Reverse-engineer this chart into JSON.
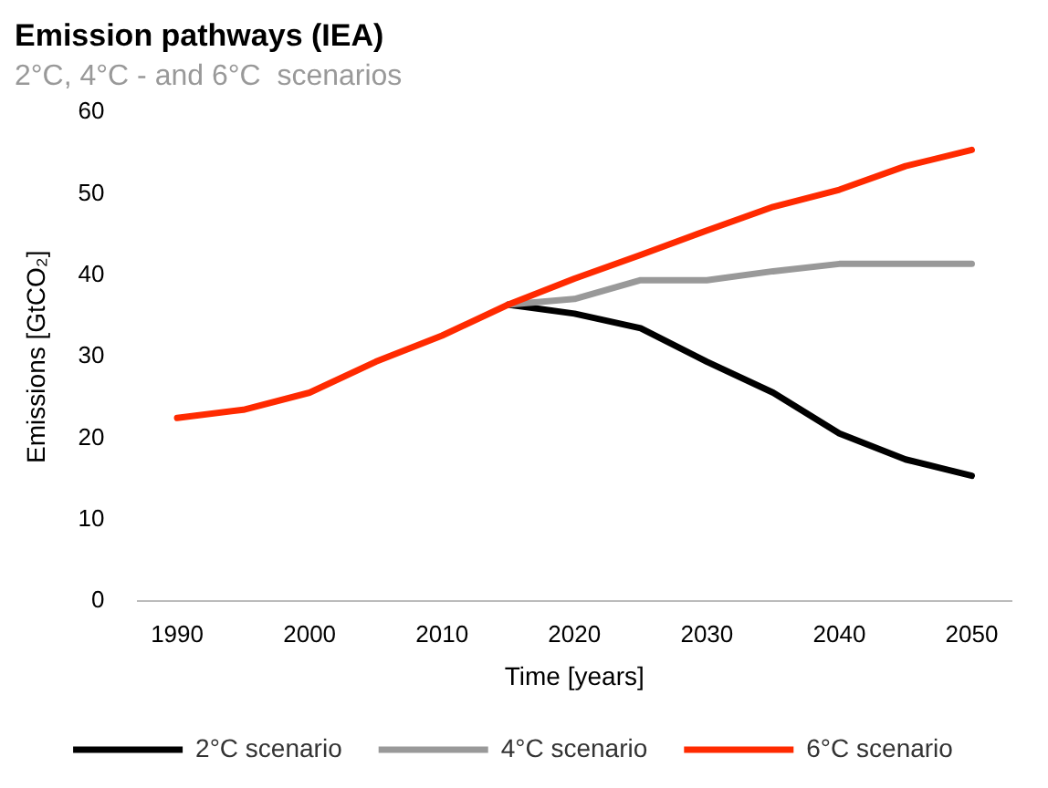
{
  "chart_data": {
    "type": "line",
    "title": "Emission pathways (IEA)",
    "subtitle": "2°C, 4°C - and 6°C  scenarios",
    "xlabel": "Time [years]",
    "ylabel": "Emissions [GtCO₂]",
    "x": [
      1990,
      1995,
      2000,
      2005,
      2010,
      2015,
      2020,
      2025,
      2030,
      2035,
      2040,
      2045,
      2050
    ],
    "series": [
      {
        "name": "2°C scenario",
        "color": "#000000",
        "values": [
          null,
          null,
          null,
          null,
          null,
          36.4,
          35.3,
          33.5,
          29.4,
          25.6,
          20.6,
          17.4,
          15.4
        ]
      },
      {
        "name": "4°C scenario",
        "color": "#999999",
        "values": [
          null,
          null,
          null,
          null,
          null,
          36.4,
          37.1,
          39.4,
          39.4,
          40.5,
          41.4,
          41.4,
          41.4
        ]
      },
      {
        "name": "6°C scenario",
        "color": "#ff2a00",
        "values": [
          22.5,
          23.5,
          25.6,
          29.4,
          32.6,
          36.4,
          39.6,
          42.5,
          45.5,
          48.4,
          50.5,
          53.4,
          55.4
        ]
      }
    ],
    "xlim": [
      1987,
      2053
    ],
    "xticks": [
      1990,
      2000,
      2010,
      2020,
      2030,
      2040,
      2050
    ],
    "ylim": [
      0,
      60
    ],
    "yticks": [
      0,
      10,
      20,
      30,
      40,
      50,
      60
    ],
    "grid": false,
    "legend": "bottom",
    "marker": "none",
    "line_style": "solid"
  }
}
